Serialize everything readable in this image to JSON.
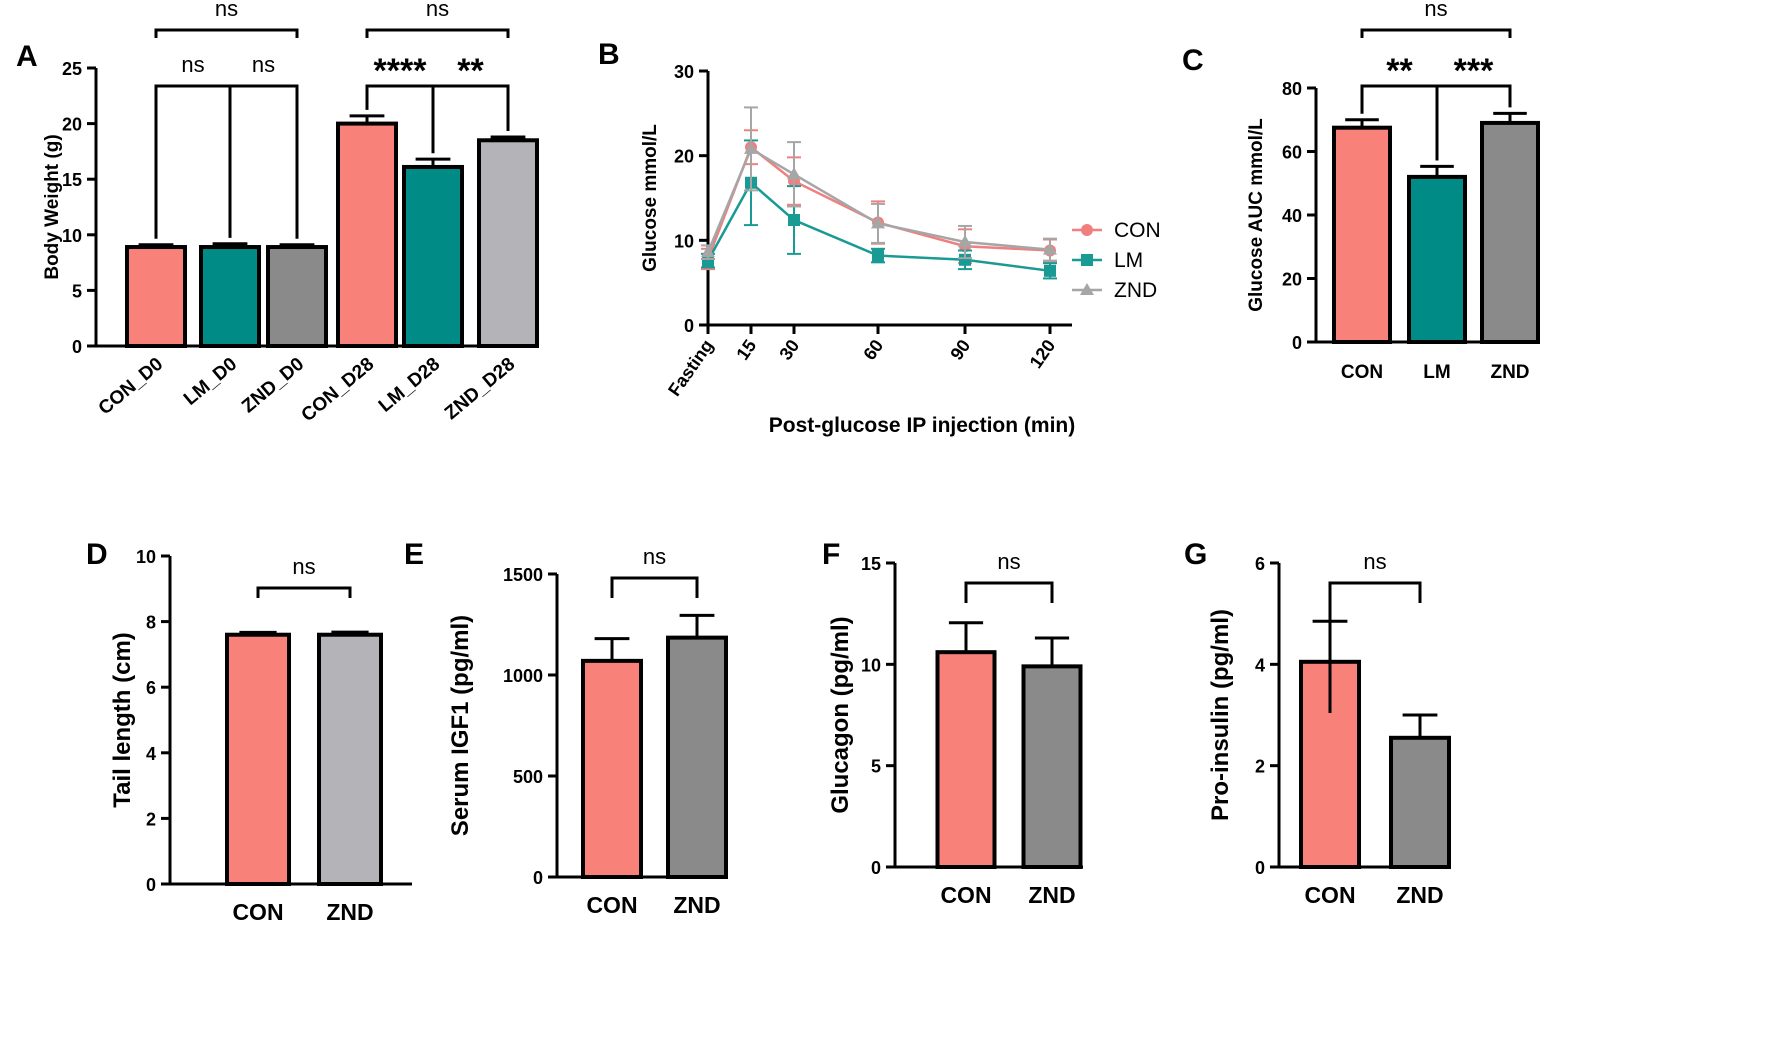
{
  "chart_data": [
    {
      "panel": "A",
      "type": "bar",
      "ylabel": "Body Weight (g)",
      "ylim": [
        0,
        25
      ],
      "yticks": [
        0,
        5,
        10,
        15,
        20,
        25
      ],
      "categories": [
        "CON_D0",
        "LM_D0",
        "ZND_D0",
        "CON_D28",
        "LM_D28",
        "ZND_D28"
      ],
      "values": [
        8.9,
        8.9,
        8.9,
        20.0,
        16.1,
        18.5
      ],
      "errors": [
        0.2,
        0.3,
        0.2,
        0.7,
        0.7,
        0.3
      ],
      "colors": [
        "#f8827a",
        "#008b86",
        "#8a8a8a",
        "#f8827a",
        "#008b86",
        "#b4b4b8"
      ],
      "significance": [
        {
          "from": 0,
          "to": 1,
          "label": "ns"
        },
        {
          "from": 1,
          "to": 2,
          "label": "ns"
        },
        {
          "from": 0,
          "to": 2,
          "label": "ns"
        },
        {
          "from": 3,
          "to": 4,
          "label": "****"
        },
        {
          "from": 4,
          "to": 5,
          "label": "**"
        },
        {
          "from": 3,
          "to": 5,
          "label": "ns"
        }
      ]
    },
    {
      "panel": "B",
      "type": "line",
      "ylabel": "Glucose mmol/L",
      "xlabel": "Post-glucose IP injection (min)",
      "ylim": [
        0,
        30
      ],
      "yticks": [
        0,
        10,
        20,
        30
      ],
      "x": [
        0,
        15,
        30,
        60,
        90,
        120
      ],
      "x_tick_labels": [
        "Fasting",
        "15",
        "30",
        "60",
        "90",
        "120"
      ],
      "legend_position": "right",
      "series": [
        {
          "name": "CON",
          "color": "#f08080",
          "marker": "circle",
          "values": [
            7.8,
            21.0,
            17.0,
            12.1,
            9.3,
            8.8
          ],
          "errors": [
            1.2,
            2.0,
            2.8,
            2.5,
            2.0,
            1.3
          ]
        },
        {
          "name": "LM",
          "color": "#1a9a94",
          "marker": "square",
          "values": [
            7.6,
            16.8,
            12.4,
            8.2,
            7.7,
            6.4
          ],
          "errors": [
            0.8,
            5.0,
            4.0,
            0.8,
            1.1,
            0.9
          ]
        },
        {
          "name": "ZND",
          "color": "#a6a6a6",
          "marker": "triangle",
          "values": [
            8.6,
            20.8,
            17.8,
            12.0,
            9.8,
            8.9
          ],
          "errors": [
            0.8,
            4.9,
            3.8,
            2.3,
            1.9,
            1.3
          ]
        }
      ]
    },
    {
      "panel": "C",
      "type": "bar",
      "ylabel": "Glucose AUC mmol/L",
      "ylim": [
        0,
        80
      ],
      "yticks": [
        0,
        20,
        40,
        60,
        80
      ],
      "categories": [
        "CON",
        "LM",
        "ZND"
      ],
      "values": [
        67.5,
        52.0,
        69.0
      ],
      "errors": [
        2.5,
        3.3,
        3.0
      ],
      "colors": [
        "#f8827a",
        "#008b86",
        "#8a8a8a"
      ],
      "significance": [
        {
          "from": 0,
          "to": 1,
          "label": "**"
        },
        {
          "from": 1,
          "to": 2,
          "label": "***"
        },
        {
          "from": 0,
          "to": 2,
          "label": "ns"
        }
      ]
    },
    {
      "panel": "D",
      "type": "bar",
      "ylabel": "Tail length (cm)",
      "ylim": [
        0,
        10
      ],
      "yticks": [
        0,
        2,
        4,
        6,
        8,
        10
      ],
      "categories": [
        "CON",
        "ZND"
      ],
      "values": [
        7.6,
        7.6
      ],
      "errors": [
        0.07,
        0.08
      ],
      "colors": [
        "#f8827a",
        "#b4b4b8"
      ],
      "significance": [
        {
          "from": 0,
          "to": 1,
          "label": "ns"
        }
      ]
    },
    {
      "panel": "E",
      "type": "bar",
      "ylabel": "Serum IGF1 (pg/ml)",
      "ylim": [
        0,
        1500
      ],
      "yticks": [
        0,
        500,
        1000,
        1500
      ],
      "categories": [
        "CON",
        "ZND"
      ],
      "values": [
        1070,
        1185
      ],
      "errors": [
        110,
        110
      ],
      "colors": [
        "#f8827a",
        "#8a8a8a"
      ],
      "significance": [
        {
          "from": 0,
          "to": 1,
          "label": "ns"
        }
      ]
    },
    {
      "panel": "F",
      "type": "bar",
      "ylabel": "Glucagon (pg/ml)",
      "ylim": [
        0,
        15
      ],
      "yticks": [
        0,
        5,
        10,
        15
      ],
      "categories": [
        "CON",
        "ZND"
      ],
      "values": [
        10.6,
        9.9
      ],
      "errors": [
        1.45,
        1.4
      ],
      "colors": [
        "#f8827a",
        "#8a8a8a"
      ],
      "significance": [
        {
          "from": 0,
          "to": 1,
          "label": "ns"
        }
      ]
    },
    {
      "panel": "G",
      "type": "bar",
      "ylabel": "Pro-insulin (pg/ml)",
      "ylim": [
        0,
        6
      ],
      "yticks": [
        0,
        2,
        4,
        6
      ],
      "categories": [
        "CON",
        "ZND"
      ],
      "values": [
        4.05,
        2.55
      ],
      "errors": [
        0.8,
        0.45
      ],
      "colors": [
        "#f8827a",
        "#8a8a8a"
      ],
      "significance": [
        {
          "from": 0,
          "to": 1,
          "label": "ns"
        }
      ]
    }
  ]
}
